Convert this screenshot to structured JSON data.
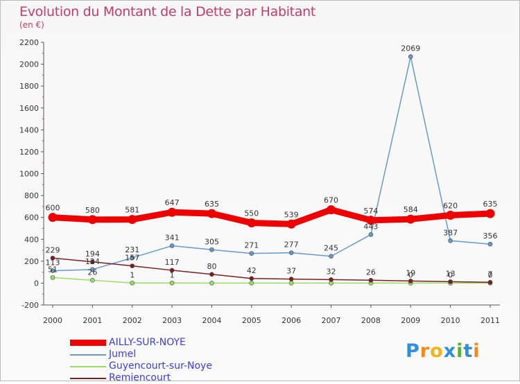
{
  "title": "Evolution du Montant de la Dette par Habitant",
  "subtitle": "(en €)",
  "logo_text": "Proxiti",
  "chart_data": {
    "type": "line",
    "title": "Evolution du Montant de la Dette par Habitant",
    "ylabel": "(en €)",
    "xlabel": "",
    "ylim": [
      -200,
      2200
    ],
    "yticks": [
      -200,
      0,
      200,
      400,
      600,
      800,
      1000,
      1200,
      1400,
      1600,
      1800,
      2000,
      2200
    ],
    "grid": false,
    "legend_position": "bottom-left",
    "categories": [
      "2000",
      "2001",
      "2002",
      "2003",
      "2004",
      "2005",
      "2006",
      "2007",
      "2008",
      "2009",
      "2010",
      "2011"
    ],
    "series": [
      {
        "name": "AILLY-SUR-NOYE",
        "color": "#ee0000",
        "values": [
          600,
          580,
          581,
          647,
          635,
          550,
          539,
          670,
          574,
          584,
          620,
          635
        ]
      },
      {
        "name": "Jumel",
        "color": "#6699cc",
        "values": [
          113,
          124,
          231,
          341,
          305,
          271,
          277,
          245,
          443,
          2069,
          387,
          356
        ]
      },
      {
        "name": "Guyencourt-sur-Noye",
        "color": "#99dd66",
        "values": [
          51,
          26,
          1,
          1,
          0,
          0,
          0,
          0,
          0,
          0,
          0,
          0
        ]
      },
      {
        "name": "Remiencourt",
        "color": "#7a1f1f",
        "values": [
          229,
          194,
          157,
          117,
          80,
          42,
          37,
          32,
          26,
          19,
          13,
          7
        ]
      }
    ],
    "point_labels": [
      [
        "600",
        "580",
        "581",
        "647",
        "635",
        "550",
        "539",
        "670",
        "574",
        "584",
        "620",
        "635"
      ],
      [
        "113",
        "124",
        "231",
        "341",
        "305",
        "271",
        "277",
        "245",
        "443",
        "2069",
        "387",
        "356"
      ],
      [
        "51",
        "26",
        "1",
        "1",
        "",
        "",
        "",
        "",
        "",
        "0",
        "0",
        "0"
      ],
      [
        "229",
        "194",
        "157",
        "117",
        "80",
        "42",
        "37",
        "32",
        "26",
        "19",
        "13",
        "7"
      ]
    ]
  }
}
